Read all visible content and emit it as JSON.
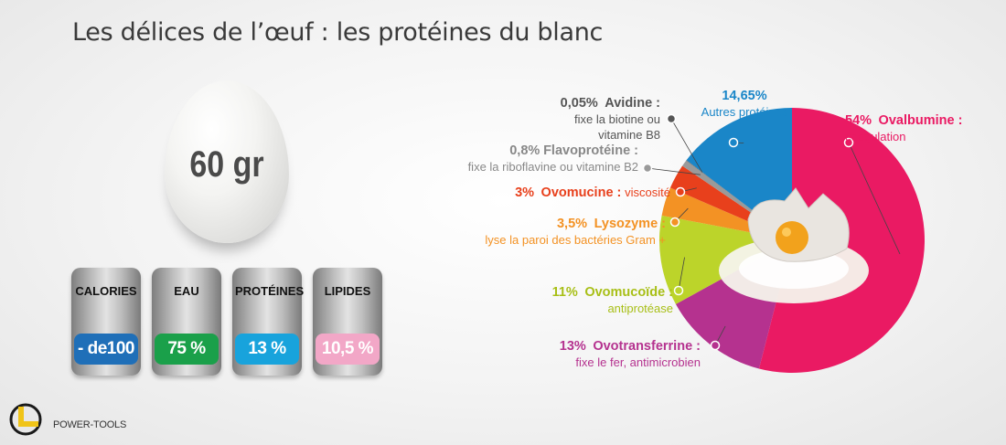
{
  "title": "Les délices de l’œuf : les protéines du blanc",
  "egg": {
    "label": "60 gr"
  },
  "nutrition": [
    {
      "name": "CALORIES",
      "value": "- de100",
      "color": "#1f6fb8"
    },
    {
      "name": "EAU",
      "value": "75 %",
      "color": "#1aa04a"
    },
    {
      "name": "PROTÉINES",
      "value": "13 %",
      "color": "#18a3dc"
    },
    {
      "name": "LIPIDES",
      "value": "10,5 %",
      "color": "#f2a7c7"
    }
  ],
  "logo": {
    "text": "POWER-TOOLS"
  },
  "chart_data": {
    "type": "pie",
    "slices": [
      {
        "percent_label": "54%",
        "name": "Ovalbumine :",
        "desc": "coagulation",
        "value": 54,
        "color": "#ea1a63"
      },
      {
        "percent_label": "13%",
        "name": "Ovotransferrine :",
        "desc": "fixe le fer, antimicrobien",
        "value": 13,
        "color": "#b5328f"
      },
      {
        "percent_label": "11%",
        "name": "Ovomucoïde :",
        "desc": "antiprotéase",
        "value": 11,
        "color": "#bcd42a"
      },
      {
        "percent_label": "3,5%",
        "name": "Lysozyme :",
        "desc": "lyse la paroi des bactéries Gram +",
        "value": 3.5,
        "color": "#f39224"
      },
      {
        "percent_label": "3%",
        "name": "Ovomucine :",
        "desc": "viscosité",
        "value": 3,
        "color": "#e8401c"
      },
      {
        "percent_label": "0,8%",
        "name": "Flavoprotéine :",
        "desc": "fixe la riboflavine ou vitamine B2",
        "value": 0.8,
        "color": "#9a9a9a"
      },
      {
        "percent_label": "0,05%",
        "name": "Avidine :",
        "desc": "fixe la biotine ou vitamine B8",
        "value": 0.05,
        "color": "#555555"
      },
      {
        "percent_label": "14,65%",
        "name": "",
        "desc": "Autres protéines",
        "value": 14.65,
        "color": "#1a86c8"
      }
    ]
  }
}
